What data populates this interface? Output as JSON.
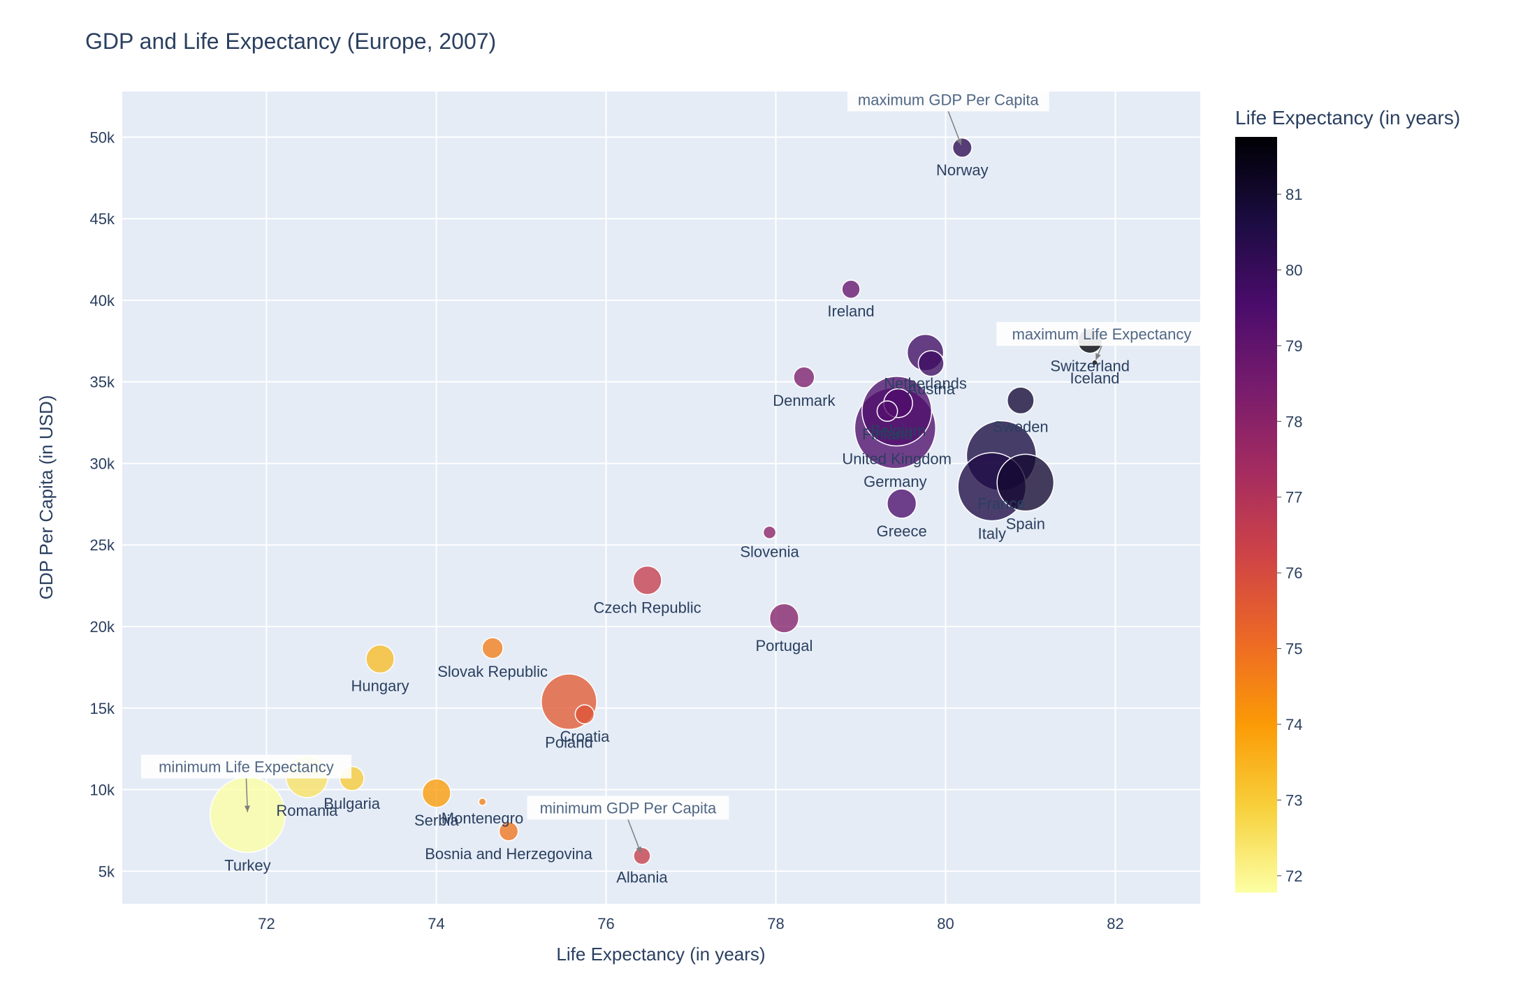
{
  "chart_data": {
    "type": "scatter",
    "title": "GDP and Life Expectancy (Europe, 2007)",
    "xlabel": "Life Expectancy (in years)",
    "ylabel": "GDP Per Capita (in USD)",
    "xlim": [
      70.3,
      83.0
    ],
    "ylim": [
      3000,
      52800
    ],
    "x_ticks": [
      {
        "value": 72,
        "label": "72"
      },
      {
        "value": 74,
        "label": "74"
      },
      {
        "value": 76,
        "label": "76"
      },
      {
        "value": 78,
        "label": "78"
      },
      {
        "value": 80,
        "label": "80"
      },
      {
        "value": 82,
        "label": "82"
      }
    ],
    "y_ticks": [
      {
        "value": 5000,
        "label": "5k"
      },
      {
        "value": 10000,
        "label": "10k"
      },
      {
        "value": 15000,
        "label": "15k"
      },
      {
        "value": 20000,
        "label": "20k"
      },
      {
        "value": 25000,
        "label": "25k"
      },
      {
        "value": 30000,
        "label": "30k"
      },
      {
        "value": 35000,
        "label": "35k"
      },
      {
        "value": 40000,
        "label": "40k"
      },
      {
        "value": 45000,
        "label": "45k"
      },
      {
        "value": 50000,
        "label": "50k"
      }
    ],
    "grid": true,
    "size_encoding": "population",
    "color_encoding": "Life Expectancy (in years)",
    "colorbar": {
      "title": "Life Expectancy (in years)",
      "range": [
        71.777,
        81.757
      ],
      "ticks": [
        {
          "value": 72,
          "label": "72"
        },
        {
          "value": 73,
          "label": "73"
        },
        {
          "value": 74,
          "label": "74"
        },
        {
          "value": 75,
          "label": "75"
        },
        {
          "value": 76,
          "label": "76"
        },
        {
          "value": 77,
          "label": "77"
        },
        {
          "value": 78,
          "label": "78"
        },
        {
          "value": 79,
          "label": "79"
        },
        {
          "value": 80,
          "label": "80"
        },
        {
          "value": 81,
          "label": "81"
        }
      ],
      "colors": [
        "#fcffa4",
        "#f7d13d",
        "#fb9b06",
        "#ed6925",
        "#cf4446",
        "#a52c60",
        "#781c6d",
        "#4a0c6b",
        "#1b0c41",
        "#000004"
      ]
    },
    "points": [
      {
        "country": "Albania",
        "x": 76.423,
        "y": 5937,
        "pop": 3600523
      },
      {
        "country": "Austria",
        "x": 79.829,
        "y": 36126,
        "pop": 8199783
      },
      {
        "country": "Belgium",
        "x": 79.441,
        "y": 33693,
        "pop": 10392226
      },
      {
        "country": "Bosnia and Herzegovina",
        "x": 74.852,
        "y": 7446,
        "pop": 4552198
      },
      {
        "country": "Bulgaria",
        "x": 73.005,
        "y": 10681,
        "pop": 7322858
      },
      {
        "country": "Croatia",
        "x": 75.748,
        "y": 14619,
        "pop": 4493312
      },
      {
        "country": "Czech Republic",
        "x": 76.486,
        "y": 22833,
        "pop": 10228744
      },
      {
        "country": "Denmark",
        "x": 78.332,
        "y": 35278,
        "pop": 5468120
      },
      {
        "country": "Finland",
        "x": 79.313,
        "y": 33207,
        "pop": 5238460
      },
      {
        "country": "France",
        "x": 80.657,
        "y": 30470,
        "pop": 61083916
      },
      {
        "country": "Germany",
        "x": 79.406,
        "y": 32170,
        "pop": 82400996
      },
      {
        "country": "Greece",
        "x": 79.483,
        "y": 27538,
        "pop": 10706290
      },
      {
        "country": "Hungary",
        "x": 73.338,
        "y": 18009,
        "pop": 9956108
      },
      {
        "country": "Iceland",
        "x": 81.757,
        "y": 36181,
        "pop": 301931
      },
      {
        "country": "Ireland",
        "x": 78.885,
        "y": 40676,
        "pop": 4109086
      },
      {
        "country": "Italy",
        "x": 80.546,
        "y": 28570,
        "pop": 58147733
      },
      {
        "country": "Montenegro",
        "x": 74.543,
        "y": 9254,
        "pop": 684736
      },
      {
        "country": "Netherlands",
        "x": 79.762,
        "y": 36798,
        "pop": 16570613
      },
      {
        "country": "Norway",
        "x": 80.196,
        "y": 49357,
        "pop": 4627926
      },
      {
        "country": "Poland",
        "x": 75.563,
        "y": 15390,
        "pop": 38518241
      },
      {
        "country": "Portugal",
        "x": 78.098,
        "y": 20510,
        "pop": 10642836
      },
      {
        "country": "Romania",
        "x": 72.476,
        "y": 10808,
        "pop": 22276056
      },
      {
        "country": "Serbia",
        "x": 74.002,
        "y": 9787,
        "pop": 10150265
      },
      {
        "country": "Slovak Republic",
        "x": 74.663,
        "y": 18678,
        "pop": 5447502
      },
      {
        "country": "Slovenia",
        "x": 77.926,
        "y": 25768,
        "pop": 2009245
      },
      {
        "country": "Spain",
        "x": 80.941,
        "y": 28821,
        "pop": 40448191
      },
      {
        "country": "Sweden",
        "x": 80.884,
        "y": 33860,
        "pop": 9031088
      },
      {
        "country": "Switzerland",
        "x": 81.701,
        "y": 37506,
        "pop": 7554661
      },
      {
        "country": "Turkey",
        "x": 71.777,
        "y": 8458,
        "pop": 71158647
      },
      {
        "country": "United Kingdom",
        "x": 79.425,
        "y": 33203,
        "pop": 60776238
      }
    ],
    "annotations": [
      {
        "text": "maximum GDP Per Capita",
        "x": 80.196,
        "y": 49357
      },
      {
        "text": "maximum Life Expectancy",
        "x": 81.757,
        "y": 36181
      },
      {
        "text": "minimum Life Expectancy",
        "x": 71.777,
        "y": 8458
      },
      {
        "text": "minimum GDP Per Capita",
        "x": 76.423,
        "y": 5937
      }
    ]
  }
}
